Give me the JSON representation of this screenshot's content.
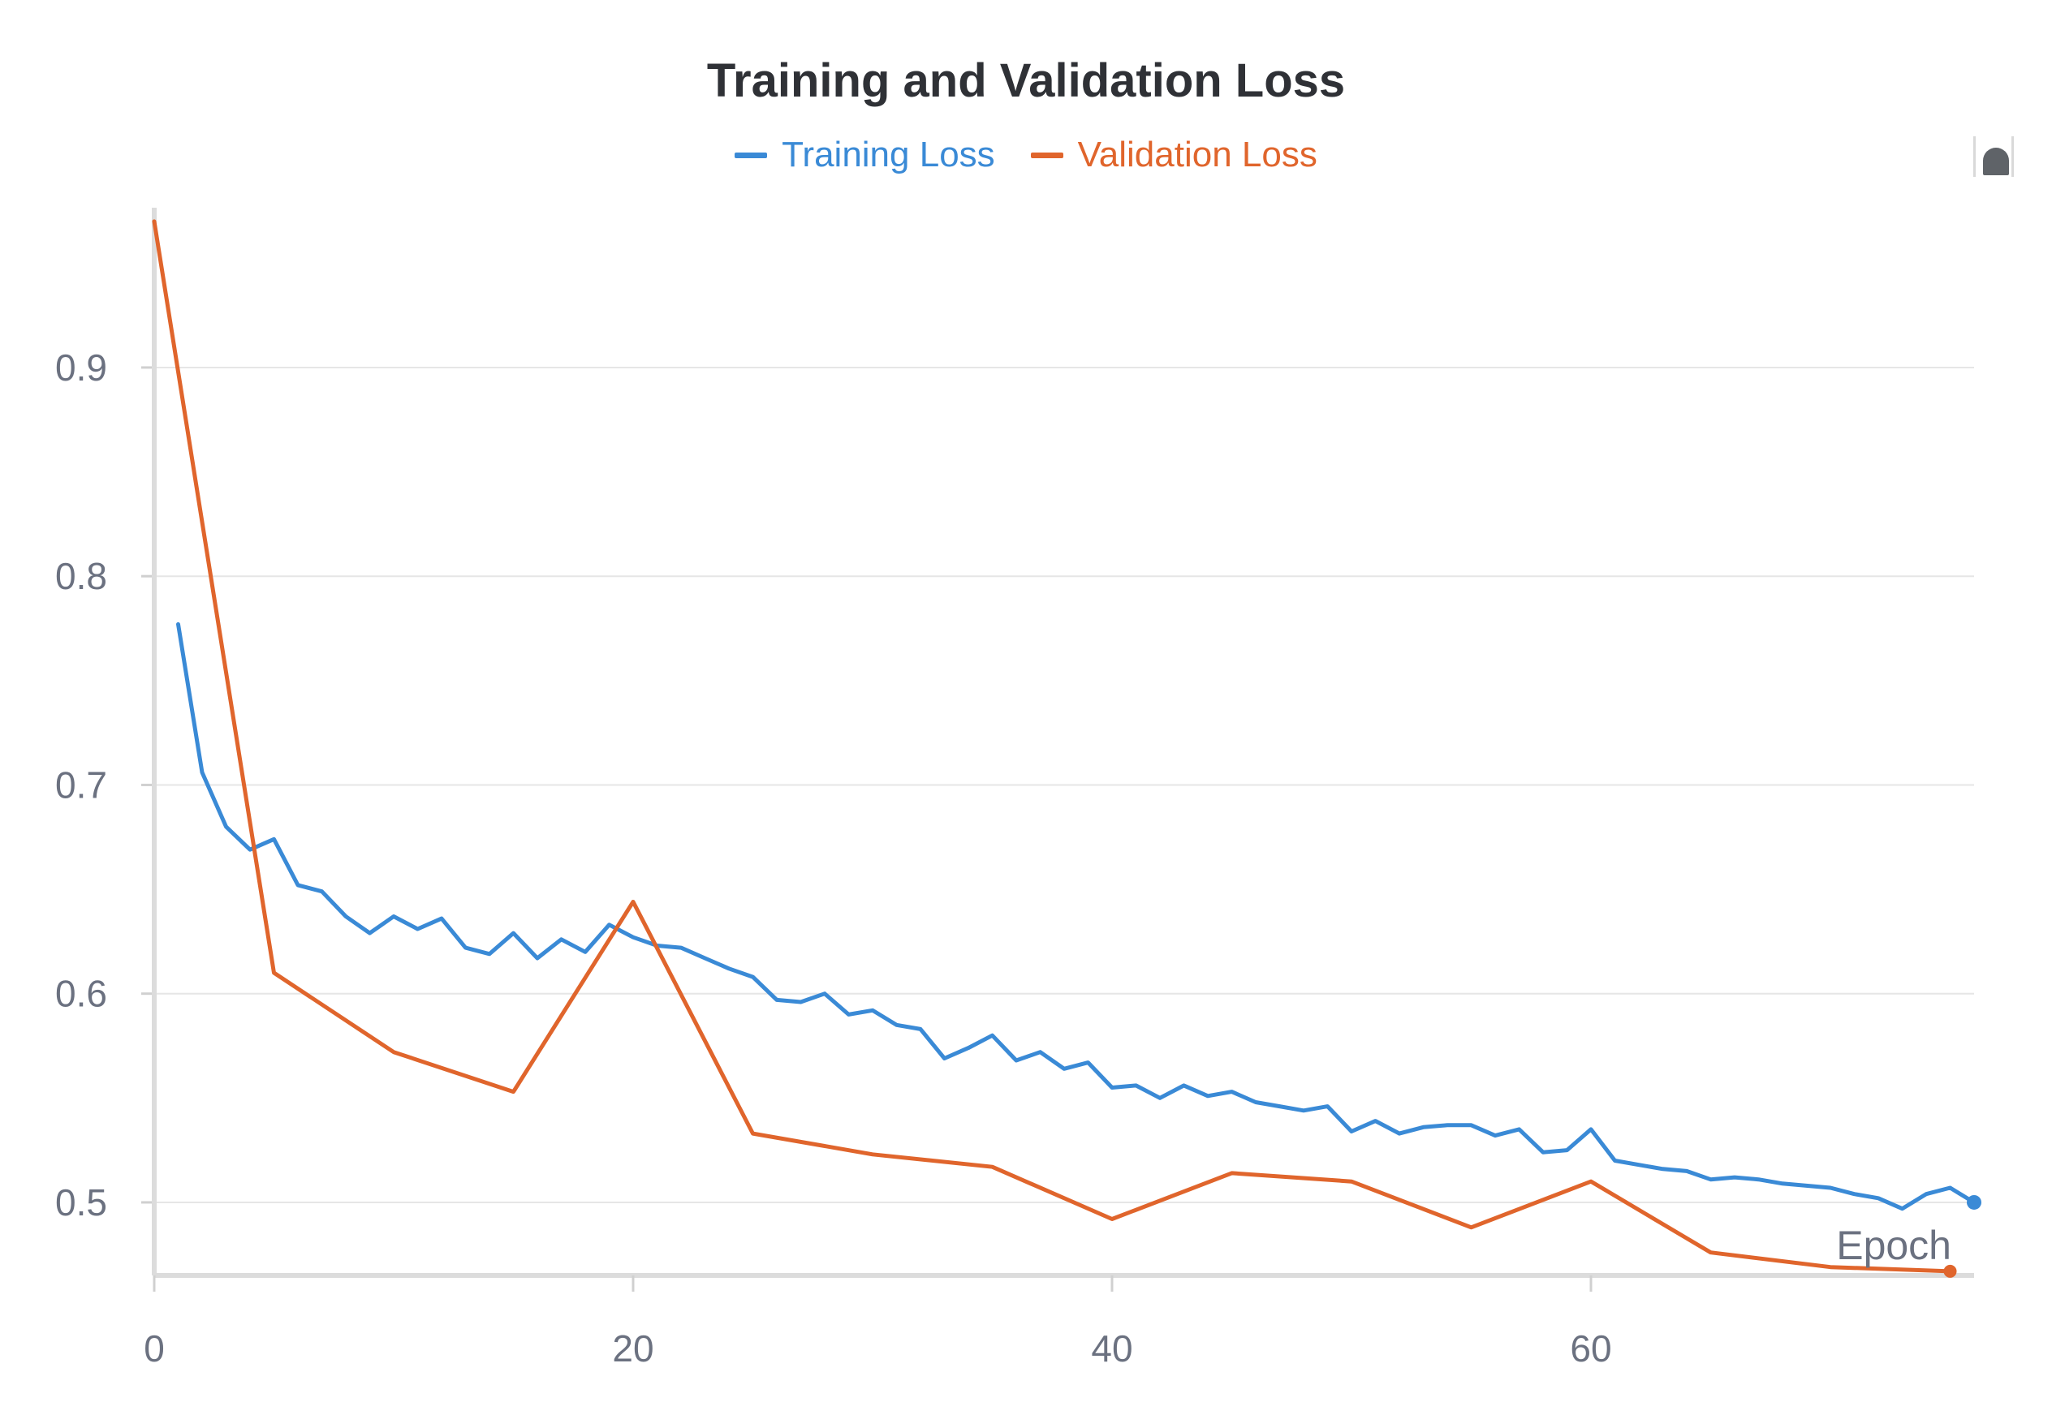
{
  "chart_data": {
    "type": "line",
    "title": "Training and Validation Loss",
    "xlabel": "Epoch",
    "ylabel": "",
    "xlim": [
      0,
      76
    ],
    "ylim": [
      0.465,
      0.975
    ],
    "xticks": [
      0,
      20,
      40,
      60
    ],
    "yticks": [
      0.5,
      0.6,
      0.7,
      0.8,
      0.9
    ],
    "xtick_labels": [
      "0",
      "20",
      "40",
      "60"
    ],
    "ytick_labels": [
      "0.5",
      "0.6",
      "0.7",
      "0.8",
      "0.9"
    ],
    "grid": true,
    "legend_position": "top-center",
    "series": [
      {
        "name": "Training Loss",
        "color": "#3a8ad6",
        "end_marker": true,
        "x": [
          1,
          2,
          3,
          4,
          5,
          6,
          7,
          8,
          9,
          10,
          11,
          12,
          13,
          14,
          15,
          16,
          17,
          18,
          19,
          20,
          21,
          22,
          23,
          24,
          25,
          26,
          27,
          28,
          29,
          30,
          31,
          32,
          33,
          34,
          35,
          36,
          37,
          38,
          39,
          40,
          41,
          42,
          43,
          44,
          45,
          46,
          47,
          48,
          49,
          50,
          51,
          52,
          53,
          54,
          55,
          56,
          57,
          58,
          59,
          60,
          61,
          62,
          63,
          64,
          65,
          66,
          67,
          68,
          69,
          70,
          71,
          72,
          73,
          74,
          75,
          76
        ],
        "y": [
          0.777,
          0.706,
          0.68,
          0.669,
          0.674,
          0.652,
          0.649,
          0.637,
          0.629,
          0.637,
          0.631,
          0.636,
          0.622,
          0.619,
          0.629,
          0.617,
          0.626,
          0.62,
          0.633,
          0.627,
          0.623,
          0.622,
          0.617,
          0.612,
          0.608,
          0.597,
          0.596,
          0.6,
          0.59,
          0.592,
          0.585,
          0.583,
          0.569,
          0.574,
          0.58,
          0.568,
          0.572,
          0.564,
          0.567,
          0.555,
          0.556,
          0.55,
          0.556,
          0.551,
          0.553,
          0.548,
          0.546,
          0.544,
          0.546,
          0.534,
          0.539,
          0.533,
          0.536,
          0.537,
          0.537,
          0.532,
          0.535,
          0.524,
          0.525,
          0.535,
          0.52,
          0.518,
          0.516,
          0.515,
          0.511,
          0.512,
          0.511,
          0.509,
          0.508,
          0.507,
          0.504,
          0.502,
          0.497,
          0.504,
          0.507,
          0.5
        ]
      },
      {
        "name": "Validation Loss",
        "color": "#e0652c",
        "end_marker": true,
        "x": [
          0,
          5,
          10,
          15,
          20,
          25,
          30,
          35,
          40,
          45,
          50,
          55,
          60,
          65,
          70,
          75
        ],
        "y": [
          0.97,
          0.61,
          0.572,
          0.553,
          0.644,
          0.533,
          0.523,
          0.517,
          0.492,
          0.514,
          0.51,
          0.488,
          0.51,
          0.476,
          0.469,
          0.467
        ]
      }
    ]
  }
}
